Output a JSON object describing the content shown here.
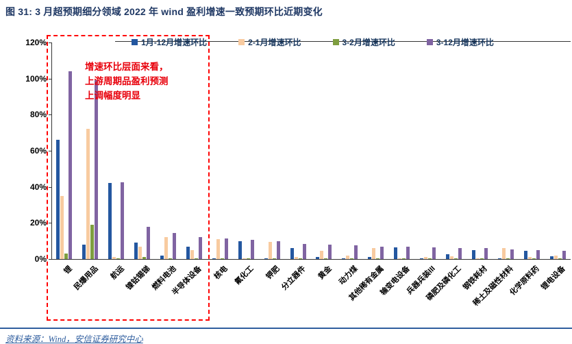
{
  "figure": {
    "title": "图 31: 3 月超预期细分领域 2022 年 wind 盈利增速一致预期环比近期变化",
    "source": "资料来源：Wind，安信证券研究中心"
  },
  "colors": {
    "title": "#1f3864",
    "annotation": "#e8000b",
    "footer_rule": "#2e5d9e",
    "highlight_box": "#ff0000"
  },
  "chart_data": {
    "type": "bar",
    "title": "3 月超预期细分领域 2022 年 wind 盈利增速一致预期环比近期变化",
    "xlabel": "",
    "ylabel": "",
    "ylim": [
      0,
      120
    ],
    "yticks": [
      "0%",
      "20%",
      "40%",
      "60%",
      "80%",
      "100%",
      "120%"
    ],
    "grid": false,
    "legend_position": "top",
    "annotation": "增速环比层面来看，上游周期品盈利预测上调幅度明显",
    "highlight_box_categories": [
      "锂",
      "民爆用品",
      "航运",
      "镍钴锡锑",
      "燃料电池",
      "半导体设备"
    ],
    "categories": [
      "锂",
      "民爆用品",
      "航运",
      "镍钴锡锑",
      "燃料电池",
      "半导体设备",
      "核电",
      "氟化工",
      "钾肥",
      "分立器件",
      "黄金",
      "动力煤",
      "其他稀有金属",
      "输变电设备",
      "兵器兵装III",
      "磷肥及磷化工",
      "钢铁耗材",
      "稀土及磁性材料",
      "化学原料药",
      "锂电设备"
    ],
    "series": [
      {
        "name": "1月-12月增速环比",
        "color": "#2457a0",
        "values": [
          66,
          8,
          42,
          9,
          2,
          7,
          0.5,
          10,
          0.5,
          6,
          1,
          0.5,
          1,
          6.5,
          0.5,
          2.5,
          5,
          0.5,
          4.5,
          1.5
        ]
      },
      {
        "name": "2-1月增速环比",
        "color": "#f8cba0",
        "values": [
          35,
          72,
          1,
          7,
          12,
          5,
          11,
          0.5,
          9.5,
          1,
          4.5,
          2,
          6,
          0.5,
          1,
          1.5,
          0.5,
          6,
          1,
          2
        ]
      },
      {
        "name": "3-2月增速环比",
        "color": "#7e9e3f",
        "values": [
          3,
          19,
          0.5,
          1,
          0.5,
          0.5,
          0.3,
          0.3,
          0.3,
          0.3,
          0.5,
          0.3,
          0.3,
          0.3,
          0.3,
          0.3,
          0.3,
          0.3,
          0.3,
          0.5
        ]
      },
      {
        "name": "3-12月增速环比",
        "color": "#8064a2",
        "values": [
          104,
          99,
          42.5,
          18,
          14.5,
          12,
          11.5,
          10.5,
          10,
          8.5,
          8,
          7.5,
          7,
          7,
          6.5,
          6,
          6,
          5.5,
          5,
          4.5
        ]
      }
    ]
  }
}
